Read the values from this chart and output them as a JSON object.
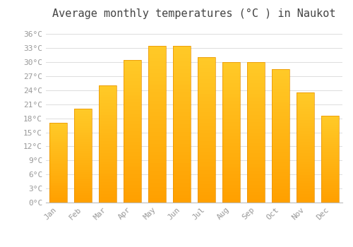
{
  "title": "Average monthly temperatures (°C ) in Naukot",
  "months": [
    "Jan",
    "Feb",
    "Mar",
    "Apr",
    "May",
    "Jun",
    "Jul",
    "Aug",
    "Sep",
    "Oct",
    "Nov",
    "Dec"
  ],
  "values": [
    17,
    20,
    25,
    30.5,
    33.5,
    33.5,
    31,
    30,
    30,
    28.5,
    23.5,
    18.5
  ],
  "bar_color_top": "#FFCA28",
  "bar_color_bottom": "#FFA000",
  "bar_edge_color": "#E89000",
  "background_color": "#FFFFFF",
  "grid_color": "#DDDDDD",
  "title_fontsize": 11,
  "ylim": [
    0,
    38
  ],
  "tick_label_color": "#999999",
  "tick_fontsize": 8
}
